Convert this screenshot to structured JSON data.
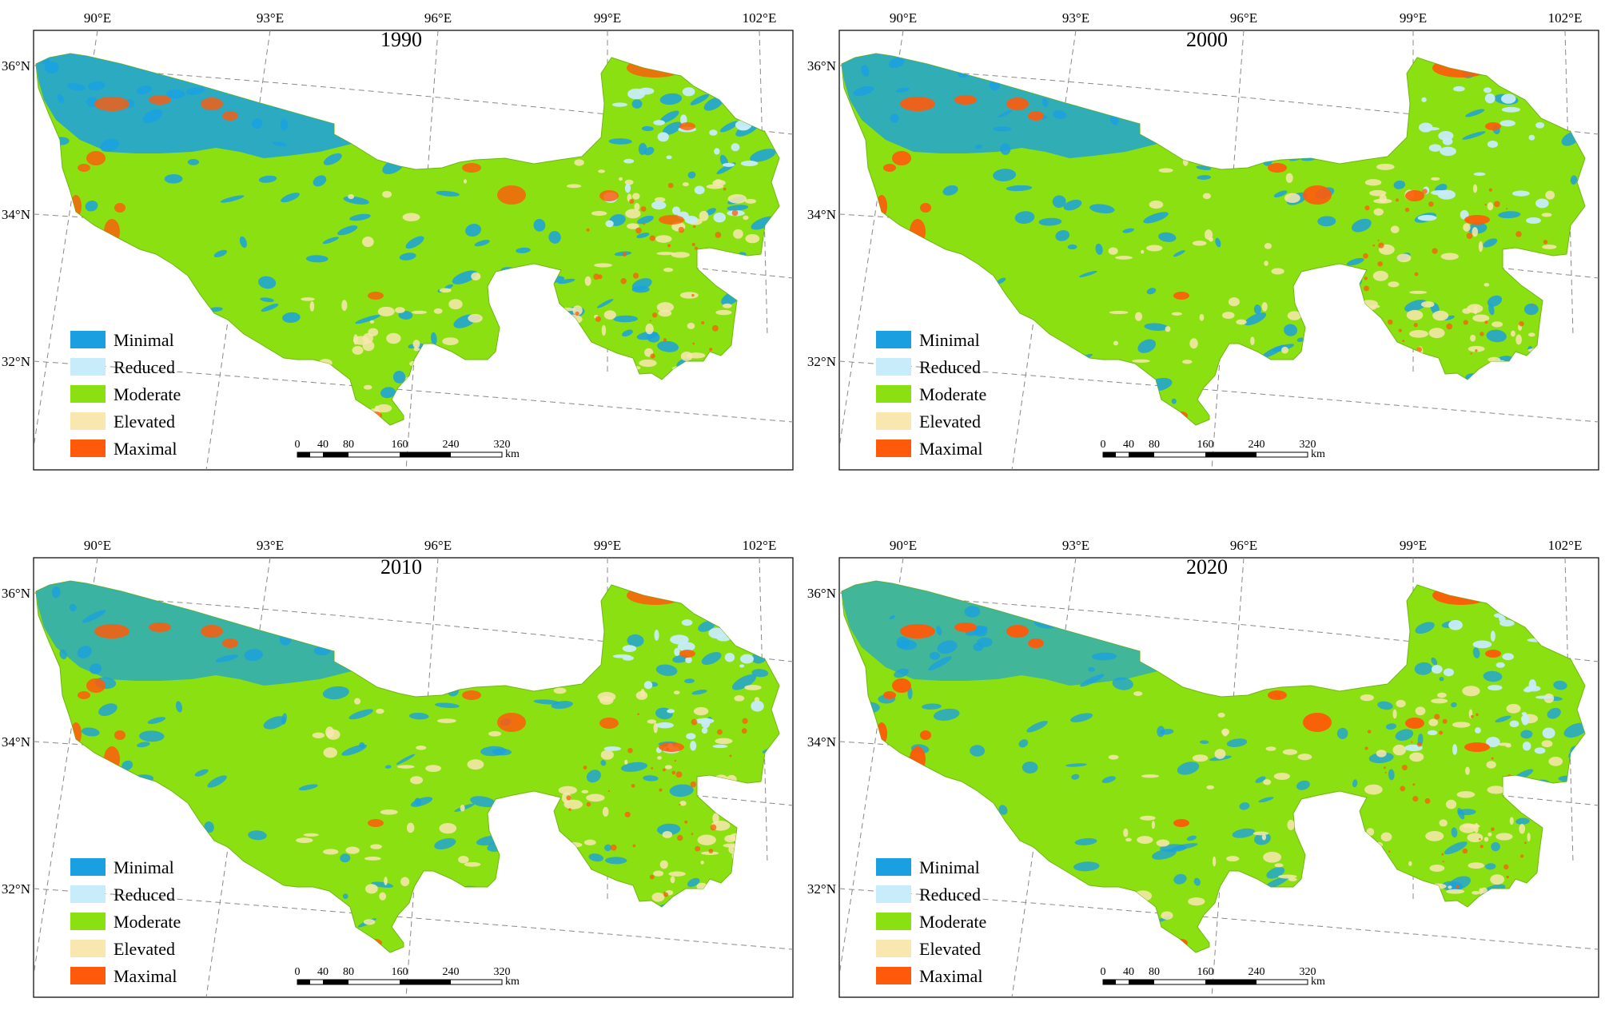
{
  "figure": {
    "longitude_labels": [
      "90°E",
      "93°E",
      "96°E",
      "99°E",
      "102°E"
    ],
    "latitude_labels": [
      "36°N",
      "34°N",
      "32°N"
    ],
    "legend": [
      {
        "label": "Minimal",
        "color": "#1aa0e0"
      },
      {
        "label": "Reduced",
        "color": "#c8ecfa"
      },
      {
        "label": "Moderate",
        "color": "#8be012"
      },
      {
        "label": "Elevated",
        "color": "#f8e8b0"
      },
      {
        "label": "Maximal",
        "color": "#ff5a0a"
      }
    ],
    "scale_bar": {
      "ticks": [
        "0",
        "40",
        "80",
        "160",
        "240",
        "320"
      ],
      "unit": "km"
    }
  },
  "panels": [
    {
      "year": "1990",
      "minimal_level": 0.85,
      "maximal_level": 0.8
    },
    {
      "year": "2000",
      "minimal_level": 0.8,
      "maximal_level": 0.9
    },
    {
      "year": "2010",
      "minimal_level": 0.7,
      "maximal_level": 0.85
    },
    {
      "year": "2020",
      "minimal_level": 0.65,
      "maximal_level": 0.95
    }
  ]
}
